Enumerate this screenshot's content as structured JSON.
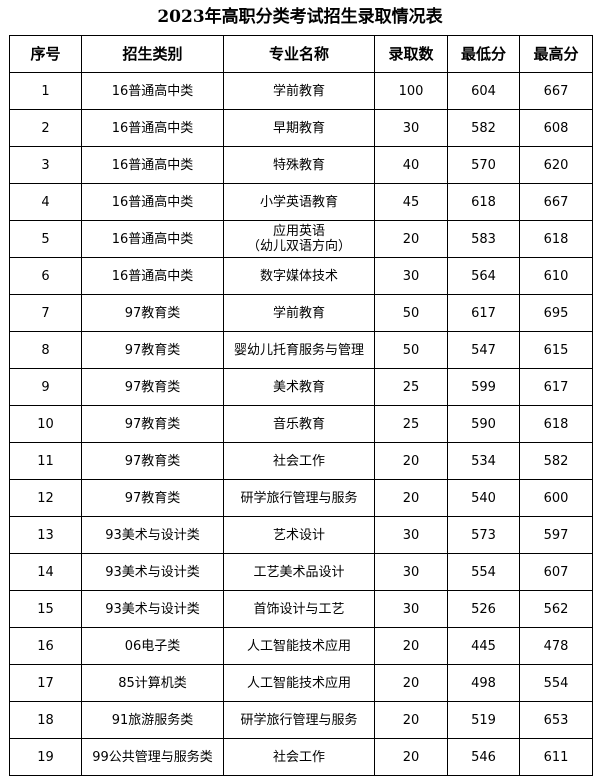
{
  "title": "2023年高职分类考试招生录取情况表",
  "headers": [
    "序号",
    "招生类别",
    "专业名称",
    "录取数",
    "最低分",
    "最高分"
  ],
  "rows": [
    [
      "1",
      "16普通高中类",
      "学前教育",
      "100",
      "604",
      "667"
    ],
    [
      "2",
      "16普通高中类",
      "早期教育",
      "30",
      "582",
      "608"
    ],
    [
      "3",
      "16普通高中类",
      "特殊教育",
      "40",
      "570",
      "620"
    ],
    [
      "4",
      "16普通高中类",
      "小学英语教育",
      "45",
      "618",
      "667"
    ],
    [
      "5",
      "16普通高中类",
      "应用英语\n（幼儿双语方向）",
      "20",
      "583",
      "618"
    ],
    [
      "6",
      "16普通高中类",
      "数字媒体技术",
      "30",
      "564",
      "610"
    ],
    [
      "7",
      "97教育类",
      "学前教育",
      "50",
      "617",
      "695"
    ],
    [
      "8",
      "97教育类",
      "婴幼儿托育服务与管理",
      "50",
      "547",
      "615"
    ],
    [
      "9",
      "97教育类",
      "美术教育",
      "25",
      "599",
      "617"
    ],
    [
      "10",
      "97教育类",
      "音乐教育",
      "25",
      "590",
      "618"
    ],
    [
      "11",
      "97教育类",
      "社会工作",
      "20",
      "534",
      "582"
    ],
    [
      "12",
      "97教育类",
      "研学旅行管理与服务",
      "20",
      "540",
      "600"
    ],
    [
      "13",
      "93美术与设计类",
      "艺术设计",
      "30",
      "573",
      "597"
    ],
    [
      "14",
      "93美术与设计类",
      "工艺美术品设计",
      "30",
      "554",
      "607"
    ],
    [
      "15",
      "93美术与设计类",
      "首饰设计与工艺",
      "30",
      "526",
      "562"
    ],
    [
      "16",
      "06电子类",
      "人工智能技术应用",
      "20",
      "445",
      "478"
    ],
    [
      "17",
      "85计算机类",
      "人工智能技术应用",
      "20",
      "498",
      "554"
    ],
    [
      "18",
      "91旅游服务类",
      "研学旅行管理与服务",
      "20",
      "519",
      "653"
    ],
    [
      "19",
      "99公共管理与服务类",
      "社会工作",
      "20",
      "546",
      "611"
    ]
  ]
}
